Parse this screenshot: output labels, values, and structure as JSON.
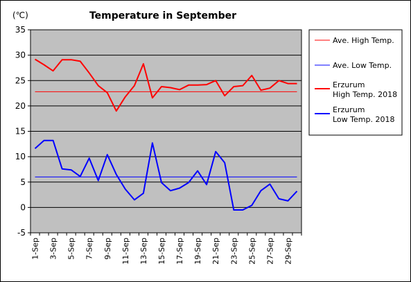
{
  "chart_data": {
    "type": "line",
    "title": "Temperature in September",
    "y_unit": "(℃)",
    "ylim": [
      -5,
      35
    ],
    "yticks": [
      -5,
      0,
      5,
      10,
      15,
      20,
      25,
      30,
      35
    ],
    "x_categories": [
      "1-Sep",
      "2-Sep",
      "3-Sep",
      "4-Sep",
      "5-Sep",
      "6-Sep",
      "7-Sep",
      "8-Sep",
      "9-Sep",
      "10-Sep",
      "11-Sep",
      "12-Sep",
      "13-Sep",
      "14-Sep",
      "15-Sep",
      "16-Sep",
      "17-Sep",
      "18-Sep",
      "19-Sep",
      "20-Sep",
      "21-Sep",
      "22-Sep",
      "23-Sep",
      "24-Sep",
      "25-Sep",
      "26-Sep",
      "27-Sep",
      "28-Sep",
      "29-Sep",
      "30-Sep"
    ],
    "x_tick_labels": [
      "1-Sep",
      "3-Sep",
      "5-Sep",
      "7-Sep",
      "9-Sep",
      "11-Sep",
      "13-Sep",
      "15-Sep",
      "17-Sep",
      "19-Sep",
      "21-Sep",
      "23-Sep",
      "25-Sep",
      "27-Sep",
      "29-Sep"
    ],
    "grid": "horizontal",
    "legend_position": "right",
    "plot_background": "#c0c0c0",
    "series": [
      {
        "name": "Ave. High Temp.",
        "color": "#ff0000",
        "width": 1,
        "constant": 22.8
      },
      {
        "name": "Ave. Low Temp.",
        "color": "#0000ff",
        "width": 1,
        "constant": 6.0
      },
      {
        "name": "Erzurum High Temp. 2018",
        "legend_lines": [
          "Erzurum",
          "High Temp. 2018"
        ],
        "color": "#ff0000",
        "width": 2,
        "values": [
          29.2,
          28.1,
          26.9,
          29.1,
          29.1,
          28.8,
          26.5,
          24.0,
          22.6,
          19.0,
          21.8,
          24.0,
          28.3,
          21.6,
          23.8,
          23.6,
          23.2,
          24.1,
          24.1,
          24.2,
          25.0,
          22.0,
          23.8,
          24.0,
          26.0,
          23.1,
          23.5,
          25.0,
          24.4,
          24.4
        ]
      },
      {
        "name": "Erzurum Low Temp. 2018",
        "legend_lines": [
          "Erzurum",
          "Low Temp. 2018"
        ],
        "color": "#0000ff",
        "width": 2,
        "values": [
          11.6,
          13.2,
          13.2,
          7.6,
          7.4,
          6.1,
          9.7,
          5.3,
          10.4,
          6.5,
          3.6,
          1.5,
          2.8,
          12.7,
          4.9,
          3.3,
          3.8,
          4.9,
          7.2,
          4.5,
          11.0,
          8.8,
          -0.5,
          -0.5,
          0.4,
          3.3,
          4.6,
          1.7,
          1.3,
          3.2
        ]
      }
    ]
  }
}
